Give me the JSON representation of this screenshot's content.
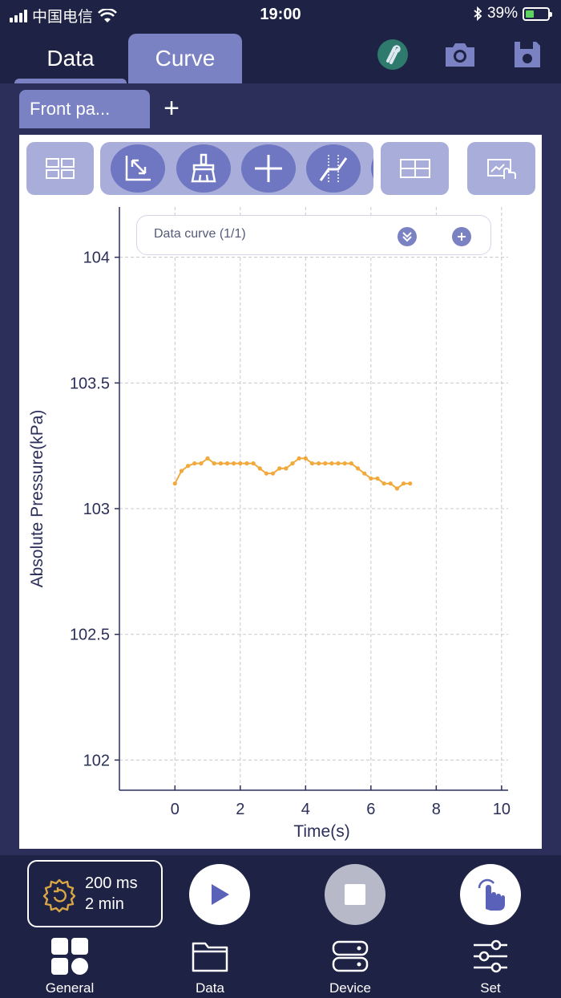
{
  "status_bar": {
    "carrier": "中国电信",
    "time": "19:00",
    "battery_percent": "39%",
    "battery_level": 0.39
  },
  "header": {
    "tabs": [
      {
        "label": "Data",
        "active": false
      },
      {
        "label": "Curve",
        "active": true
      }
    ],
    "icons": [
      "link-icon",
      "camera-icon",
      "save-icon"
    ]
  },
  "subtabs": {
    "active_label": "Front pa...",
    "add_label": "+"
  },
  "toolbar": {
    "icons": [
      "grid-layout-icon",
      "zoom-fit-icon",
      "clear-brush-icon",
      "crosshair-icon",
      "tangent-icon",
      "table-icon",
      "touch-screen-icon"
    ]
  },
  "curve_selector": {
    "label": "Data curve (1/1)",
    "expand_icon": "chevron-double-down-icon",
    "add_icon": "plus-circle-icon"
  },
  "chart_data": {
    "type": "line",
    "xlabel": "Time(s)",
    "ylabel": "Absolute Pressure(kPa)",
    "xlim": [
      -1.7,
      10.2
    ],
    "ylim": [
      101.88,
      104.2
    ],
    "xticks": [
      0,
      2,
      4,
      6,
      8,
      10
    ],
    "yticks": [
      102,
      102.5,
      103,
      103.5,
      104
    ],
    "ytick_labels": [
      "102",
      "102.5",
      "103",
      "103.5",
      "104"
    ],
    "grid": true,
    "line_color": "#f0a93a",
    "series": [
      {
        "x": [
          0,
          0.2,
          0.4,
          0.6,
          0.8,
          1.0,
          1.2,
          1.4,
          1.6,
          1.8,
          2.0,
          2.2,
          2.4,
          2.6,
          2.8,
          3.0,
          3.2,
          3.4,
          3.6,
          3.8,
          4.0,
          4.2,
          4.4,
          4.6,
          4.8,
          5.0,
          5.2,
          5.4,
          5.6,
          5.8,
          6.0,
          6.2,
          6.4,
          6.6,
          6.8,
          7.0,
          7.2
        ],
        "values": [
          103.1,
          103.15,
          103.17,
          103.18,
          103.18,
          103.2,
          103.18,
          103.18,
          103.18,
          103.18,
          103.18,
          103.18,
          103.18,
          103.16,
          103.14,
          103.14,
          103.16,
          103.16,
          103.18,
          103.2,
          103.2,
          103.18,
          103.18,
          103.18,
          103.18,
          103.18,
          103.18,
          103.18,
          103.16,
          103.14,
          103.12,
          103.12,
          103.1,
          103.1,
          103.08,
          103.1,
          103.1
        ]
      }
    ]
  },
  "controls": {
    "sample_interval": "200 ms",
    "duration": "2 min",
    "rate_icon": "timer-settings-icon",
    "play_icon": "play-icon",
    "stop_icon": "stop-icon",
    "touch_icon": "touch-hand-icon"
  },
  "bottom_nav": {
    "items": [
      {
        "label": "General",
        "icon": "general-grid-icon"
      },
      {
        "label": "Data",
        "icon": "folder-icon"
      },
      {
        "label": "Device",
        "icon": "device-server-icon"
      },
      {
        "label": "Set",
        "icon": "sliders-icon"
      }
    ]
  }
}
